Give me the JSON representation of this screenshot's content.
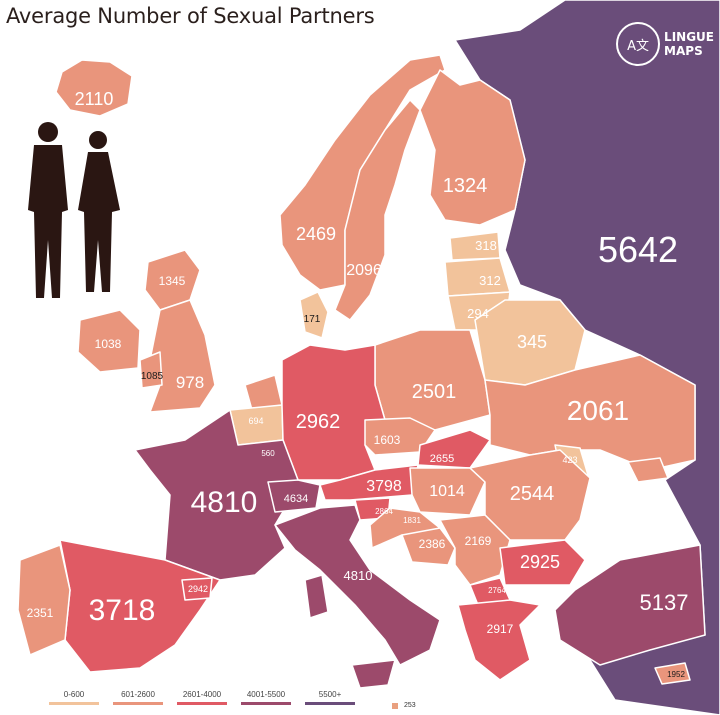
{
  "title": "Average Number of Sexual Partners",
  "brand": {
    "glyph": "A文",
    "line1": "LINGUE",
    "line2": "MAPS"
  },
  "colors": {
    "bin1": "#f2c39b",
    "bin2": "#e9957c",
    "bin3": "#e05a64",
    "bin4": "#9c4a6b",
    "bin5": "#6a4d7a",
    "border": "#ffffff",
    "sea": "#ffffff"
  },
  "icons": [
    "couple-silhouette-icon",
    "lingue-maps-logo-icon"
  ],
  "legend": [
    {
      "label": "0-600",
      "color": "#f2c39b"
    },
    {
      "label": "601-2600",
      "color": "#e9957c"
    },
    {
      "label": "2601-4000",
      "color": "#e05a64"
    },
    {
      "label": "4001-5500",
      "color": "#9c4a6b"
    },
    {
      "label": "5500+",
      "color": "#6a4d7a"
    }
  ],
  "footnote": "253",
  "regions": [
    {
      "id": "iceland",
      "value": "2110",
      "bin": 2
    },
    {
      "id": "russia",
      "value": "5642",
      "bin": 5
    },
    {
      "id": "finland",
      "value": "1324",
      "bin": 2
    },
    {
      "id": "norway",
      "value": "2469",
      "bin": 2
    },
    {
      "id": "sweden",
      "value": "2096",
      "bin": 2
    },
    {
      "id": "denmark",
      "value": "171",
      "bin": 1
    },
    {
      "id": "estonia",
      "value": "318",
      "bin": 1
    },
    {
      "id": "latvia",
      "value": "312",
      "bin": 1
    },
    {
      "id": "lithuania",
      "value": "294",
      "bin": 1
    },
    {
      "id": "belarus",
      "value": "345",
      "bin": 1
    },
    {
      "id": "scotland",
      "value": "1345",
      "bin": 2
    },
    {
      "id": "ireland",
      "value": "1038",
      "bin": 2
    },
    {
      "id": "wales",
      "value": "1085",
      "bin": 2
    },
    {
      "id": "england",
      "value": "978",
      "bin": 2
    },
    {
      "id": "netherlands",
      "value": "694",
      "bin": 2
    },
    {
      "id": "belgium",
      "value": "560",
      "bin": 1
    },
    {
      "id": "germany",
      "value": "2962",
      "bin": 3
    },
    {
      "id": "poland",
      "value": "2501",
      "bin": 2
    },
    {
      "id": "ukraine",
      "value": "2061",
      "bin": 2
    },
    {
      "id": "czechia",
      "value": "1603",
      "bin": 2
    },
    {
      "id": "slovakia",
      "value": "2655",
      "bin": 3
    },
    {
      "id": "moldova",
      "value": "423",
      "bin": 1
    },
    {
      "id": "france",
      "value": "4810",
      "bin": 4
    },
    {
      "id": "switzerland",
      "value": "4634",
      "bin": 4
    },
    {
      "id": "austria",
      "value": "3798",
      "bin": 3
    },
    {
      "id": "hungary",
      "value": "1014",
      "bin": 2
    },
    {
      "id": "romania",
      "value": "2544",
      "bin": 2
    },
    {
      "id": "slovenia",
      "value": "2864",
      "bin": 3
    },
    {
      "id": "croatia",
      "value": "1831",
      "bin": 2
    },
    {
      "id": "bosnia",
      "value": "2386",
      "bin": 2
    },
    {
      "id": "serbia",
      "value": "2169",
      "bin": 2
    },
    {
      "id": "bulgaria",
      "value": "2925",
      "bin": 3
    },
    {
      "id": "macedonia",
      "value": "2764",
      "bin": 3
    },
    {
      "id": "greece",
      "value": "2917",
      "bin": 3
    },
    {
      "id": "italy",
      "value": "4810",
      "bin": 4
    },
    {
      "id": "andorra",
      "value": "2942",
      "bin": 3
    },
    {
      "id": "spain",
      "value": "3718",
      "bin": 3
    },
    {
      "id": "portugal",
      "value": "2351",
      "bin": 2
    },
    {
      "id": "turkey",
      "value": "5137",
      "bin": 4
    },
    {
      "id": "cyprus",
      "value": "1952",
      "bin": 2
    }
  ]
}
